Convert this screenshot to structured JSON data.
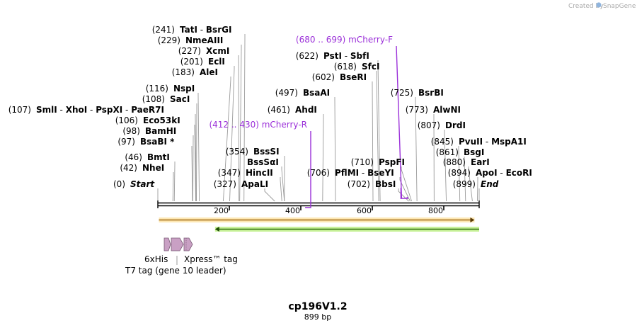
{
  "credit": {
    "prefix": "Created by",
    "app": "SnapGene"
  },
  "plasmid": {
    "name": "cp196V1.2",
    "length_label": "899 bp"
  },
  "ticks": [
    {
      "value": 200,
      "label": "200"
    },
    {
      "value": 400,
      "label": "400"
    },
    {
      "value": 600,
      "label": "600"
    },
    {
      "value": 800,
      "label": "800"
    }
  ],
  "sites": [
    {
      "pos": "(241)",
      "names": [
        "TatI",
        "BsrGI"
      ],
      "cut": 241
    },
    {
      "pos": "(229)",
      "names": [
        "NmeAIII"
      ],
      "cut": 229
    },
    {
      "pos": "(227)",
      "names": [
        "XcmI"
      ],
      "cut": 227
    },
    {
      "pos": "(201)",
      "names": [
        "EclI"
      ],
      "cut": 201
    },
    {
      "pos": "(183)",
      "names": [
        "AleI"
      ],
      "cut": 183
    },
    {
      "pos": "(116)",
      "names": [
        "NspI"
      ],
      "cut": 116
    },
    {
      "pos": "(108)",
      "names": [
        "SacI"
      ],
      "cut": 108
    },
    {
      "pos": "(107)",
      "names": [
        "SmlI",
        "XhoI",
        "PspXI",
        "PaeR7I"
      ],
      "cut": 107
    },
    {
      "pos": "(106)",
      "names": [
        "Eco53kI"
      ],
      "cut": 106
    },
    {
      "pos": "(98)",
      "names": [
        "BamHI"
      ],
      "cut": 98
    },
    {
      "pos": "(97)",
      "names": [
        "BsaBI *"
      ],
      "cut": 97
    },
    {
      "pos": "(46)",
      "names": [
        "BmtI"
      ],
      "cut": 46
    },
    {
      "pos": "(42)",
      "names": [
        "NheI"
      ],
      "cut": 42
    },
    {
      "pos": "(0)",
      "names": [
        "Start"
      ],
      "cut": 0,
      "italic": true
    },
    {
      "pos": "(354)",
      "names": [
        "BssSI"
      ],
      "cut": 354
    },
    {
      "pos": "(354)",
      "names": [
        "BssSαI"
      ],
      "cut": 354,
      "hide_pos": true
    },
    {
      "pos": "(347)",
      "names": [
        "HincII"
      ],
      "cut": 347
    },
    {
      "pos": "(327)",
      "names": [
        "ApaLI"
      ],
      "cut": 327
    },
    {
      "pos": "(497)",
      "names": [
        "BsaAI"
      ],
      "cut": 497
    },
    {
      "pos": "(461)",
      "names": [
        "AhdI"
      ],
      "cut": 461
    },
    {
      "pos": "(706)",
      "names": [
        "PflMI",
        "BseYI"
      ],
      "cut": 706
    },
    {
      "pos": "(622)",
      "names": [
        "PstI",
        "SbfI"
      ],
      "cut": 622
    },
    {
      "pos": "(618)",
      "names": [
        "SfcI"
      ],
      "cut": 618
    },
    {
      "pos": "(602)",
      "names": [
        "BseRI"
      ],
      "cut": 602
    },
    {
      "pos": "(710)",
      "names": [
        "PspFI"
      ],
      "cut": 710
    },
    {
      "pos": "(702)",
      "names": [
        "BbsI"
      ],
      "cut": 702
    },
    {
      "pos": "(725)",
      "names": [
        "BsrBI"
      ],
      "cut": 725
    },
    {
      "pos": "(773)",
      "names": [
        "AlwNI"
      ],
      "cut": 773
    },
    {
      "pos": "(807)",
      "names": [
        "DrdI"
      ],
      "cut": 807
    },
    {
      "pos": "(845)",
      "names": [
        "PvuII",
        "MspA1I"
      ],
      "cut": 845
    },
    {
      "pos": "(861)",
      "names": [
        "BsgI"
      ],
      "cut": 861
    },
    {
      "pos": "(880)",
      "names": [
        "EarI"
      ],
      "cut": 880
    },
    {
      "pos": "(894)",
      "names": [
        "ApoI",
        "EcoRI"
      ],
      "cut": 894
    },
    {
      "pos": "(899)",
      "names": [
        "End"
      ],
      "cut": 899,
      "italic": true
    }
  ],
  "primers": [
    {
      "range": "(680 .. 699)",
      "name": "mCherry-F",
      "start": 680,
      "end": 699,
      "direction": "forward"
    },
    {
      "range": "(412 .. 430)",
      "name": "mCherry-R",
      "start": 412,
      "end": 430,
      "direction": "reverse"
    }
  ],
  "features": [
    {
      "name": "orange-arrow",
      "start": 1,
      "end": 886,
      "direction": "forward",
      "color": "#f5a623"
    },
    {
      "name": "green-arrow",
      "start": 160,
      "end": 899,
      "direction": "reverse",
      "color": "#7ed321"
    },
    {
      "label": "6xHis",
      "start": 20,
      "end": 38,
      "color": "#c9a0c4"
    },
    {
      "label": "Xpress™ tag",
      "start": 62,
      "end": 86,
      "color": "#c9a0c4"
    },
    {
      "label": "T7 tag (gene 10 leader)",
      "start": 40,
      "end": 74,
      "color": "#c9a0c4"
    }
  ],
  "colors": {
    "primer": "#9b30d9",
    "backbone": "#000000",
    "leader": "#999999"
  }
}
